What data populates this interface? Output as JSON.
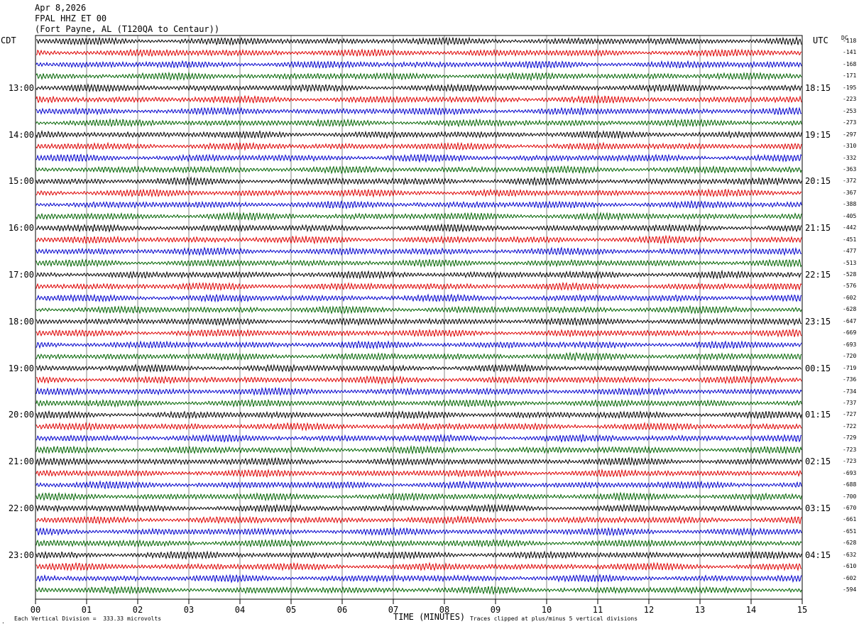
{
  "header": {
    "date": "Apr 8,2026",
    "station": "FPAL HHZ ET 00",
    "location": "(Fort Payne, AL (T120QA to Centaur))"
  },
  "left_zone": "CDT",
  "right_zone": "UTC",
  "dc_header": "DC",
  "footer": {
    "scale_note": "Each Vertical Division =  333.33 microvolts",
    "xlabel": "TIME (MINUTES)",
    "clip_note": "Traces clipped at plus/minus 5 vertical divisions"
  },
  "colors": {
    "trace_cycle": [
      "#000000",
      "#dd0000",
      "#0000cc",
      "#006400"
    ],
    "grid": "#888888"
  },
  "chart_data": {
    "type": "line",
    "title": "FPAL HHZ ET 00",
    "xlabel": "TIME (MINUTES)",
    "xlim": [
      0,
      15
    ],
    "x_ticks": [
      "00",
      "01",
      "02",
      "03",
      "04",
      "05",
      "06",
      "07",
      "08",
      "09",
      "10",
      "11",
      "12",
      "13",
      "14",
      "15"
    ],
    "row_minutes": 15,
    "left_hour_labels": [
      "13:00",
      "14:00",
      "15:00",
      "16:00",
      "17:00",
      "18:00",
      "19:00",
      "20:00",
      "21:00",
      "22:00",
      "23:00"
    ],
    "right_hour_labels": [
      "18:15",
      "19:15",
      "20:15",
      "21:15",
      "22:15",
      "23:15",
      "00:15",
      "01:15",
      "02:15",
      "03:15",
      "04:15"
    ],
    "dc_offsets": [
      "-118",
      "-141",
      "-168",
      "-171",
      "-195",
      "-223",
      "-253",
      "-273",
      "-297",
      "-310",
      "-332",
      "-363",
      "-372",
      "-367",
      "-388",
      "-405",
      "-442",
      "-451",
      "-477",
      "-513",
      "-528",
      "-576",
      "-602",
      "-628",
      "-647",
      "-669",
      "-693",
      "-720",
      "-719",
      "-736",
      "-734",
      "-737",
      "-727",
      "-722",
      "-729",
      "-723",
      "-723",
      "-693",
      "-688",
      "-700",
      "-670",
      "-661",
      "-651",
      "-628",
      "-632",
      "-610",
      "-602",
      "-594"
    ]
  }
}
